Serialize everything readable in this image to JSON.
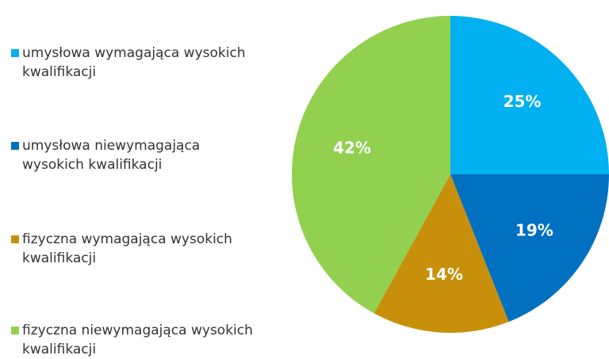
{
  "chart_data": {
    "type": "pie",
    "categories": [
      "umysłowa wymagająca wysokich kwalifikacji",
      "umysłowa niewymagająca wysokich kwalifikacji",
      "fizyczna wymagająca wysokich kwalifikacji",
      "fizyczna niewymagająca wysokich kwalifikacji"
    ],
    "values": [
      25,
      19,
      14,
      42
    ],
    "value_labels": [
      "25%",
      "19%",
      "14%",
      "42%"
    ],
    "colors": [
      "#00b0f0",
      "#0070c0",
      "#c8900a",
      "#92d050"
    ],
    "legend": "left"
  }
}
